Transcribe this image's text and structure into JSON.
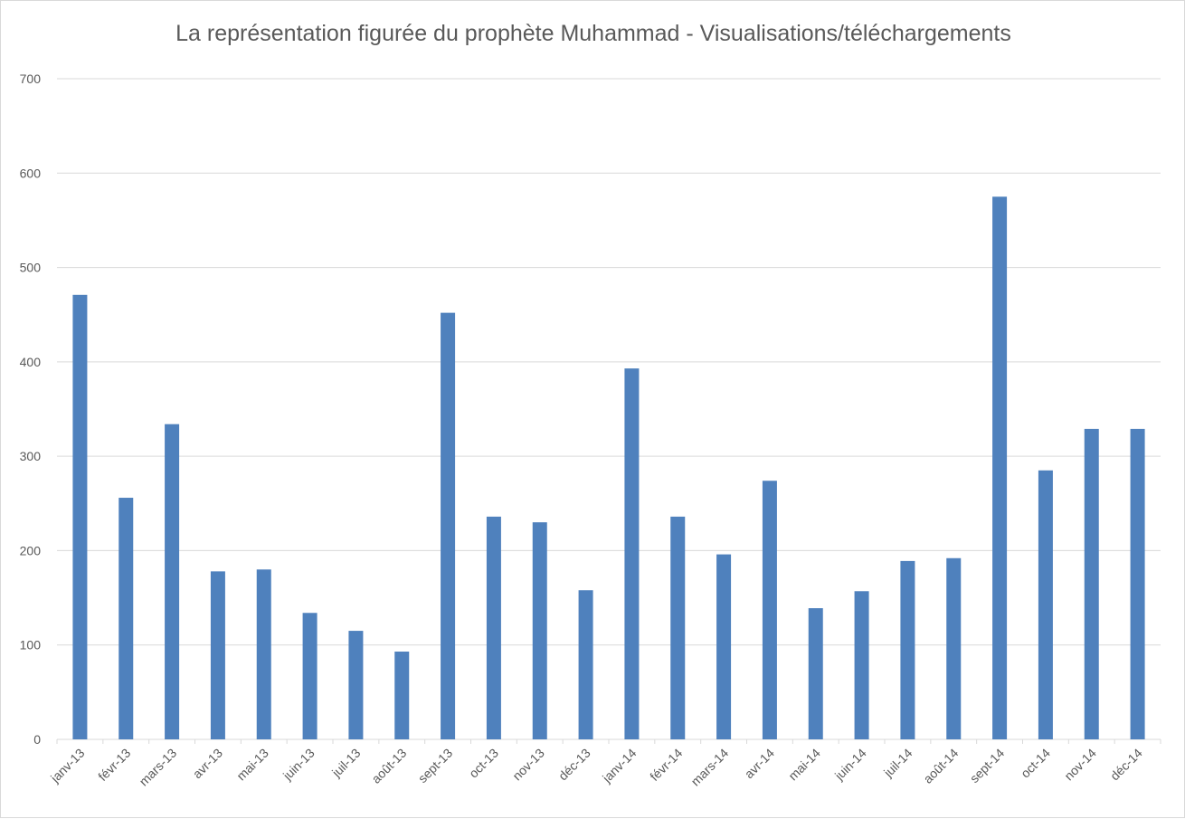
{
  "chart_data": {
    "type": "bar",
    "title": "La représentation figurée du prophète Muhammad - Visualisations/téléchargements",
    "xlabel": "",
    "ylabel": "",
    "ylim": [
      0,
      700
    ],
    "yticks": [
      0,
      100,
      200,
      300,
      400,
      500,
      600,
      700
    ],
    "grid": true,
    "legend": "none",
    "bar_color": "#4f81bd",
    "categories": [
      "janv-13",
      "févr-13",
      "mars-13",
      "avr-13",
      "mai-13",
      "juin-13",
      "juil-13",
      "août-13",
      "sept-13",
      "oct-13",
      "nov-13",
      "déc-13",
      "janv-14",
      "févr-14",
      "mars-14",
      "avr-14",
      "mai-14",
      "juin-14",
      "juil-14",
      "août-14",
      "sept-14",
      "oct-14",
      "nov-14",
      "déc-14"
    ],
    "values": [
      471,
      256,
      334,
      178,
      180,
      134,
      115,
      93,
      452,
      236,
      230,
      158,
      393,
      236,
      196,
      274,
      139,
      157,
      189,
      192,
      575,
      285,
      329,
      329
    ]
  }
}
